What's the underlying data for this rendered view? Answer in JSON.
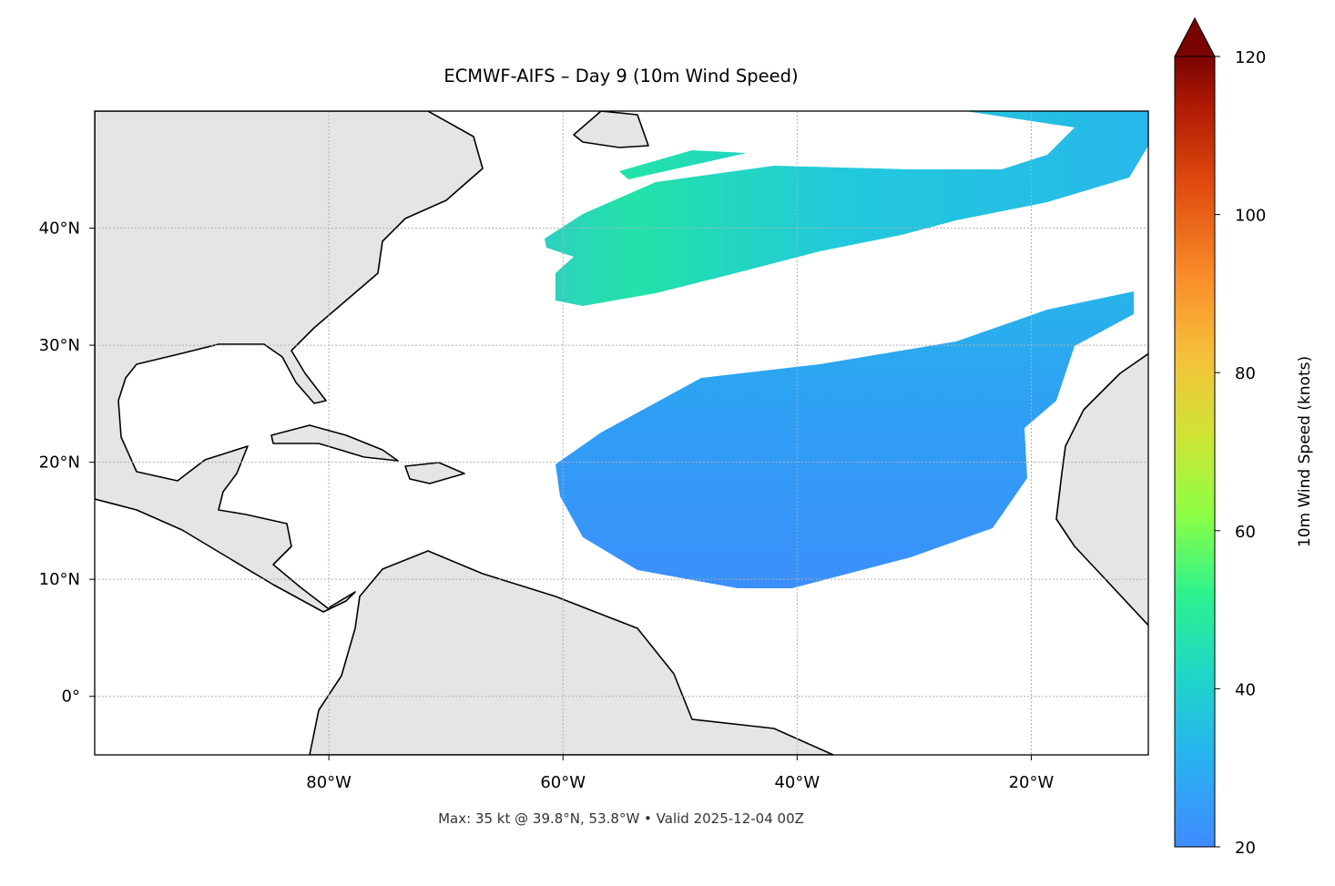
{
  "chart_data": {
    "type": "map",
    "title": "ECMWF-AIFS – Day 9 (10m Wind Speed)",
    "note": "Max: 35 kt @ 39.8°N, 53.8°W • Valid 2025-12-04 00Z",
    "xlim": [
      -100,
      -10
    ],
    "ylim": [
      -5,
      50
    ],
    "xticks": [
      {
        "value": -80,
        "label": "80°W"
      },
      {
        "value": -60,
        "label": "60°W"
      },
      {
        "value": -40,
        "label": "40°W"
      },
      {
        "value": -20,
        "label": "20°W"
      }
    ],
    "yticks": [
      {
        "value": 0,
        "label": "0°"
      },
      {
        "value": 10,
        "label": "10°N"
      },
      {
        "value": 20,
        "label": "20°N"
      },
      {
        "value": 30,
        "label": "30°N"
      },
      {
        "value": 40,
        "label": "40°N"
      }
    ],
    "grid": true,
    "colorbar": {
      "label": "10m Wind Speed (knots)",
      "lim": [
        20,
        120
      ],
      "ticks": [
        20,
        40,
        60,
        80,
        100,
        120
      ]
    }
  }
}
